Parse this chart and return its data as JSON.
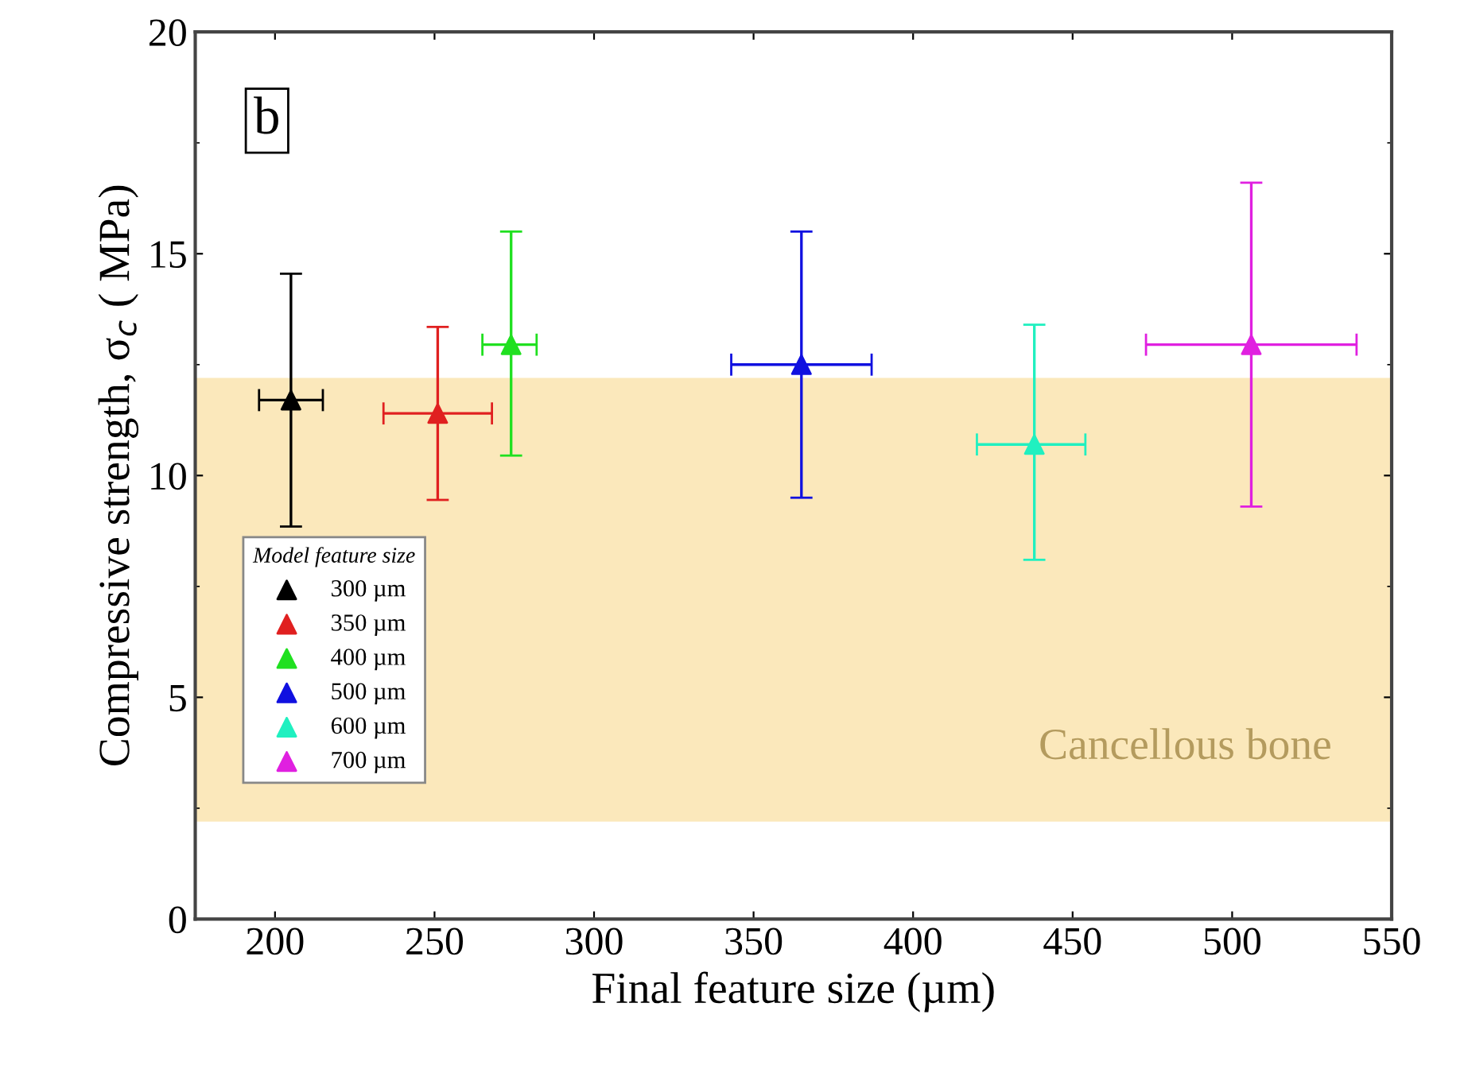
{
  "chart_data": {
    "type": "scatter",
    "xlabel": "Final feature size (µm)",
    "ylabel": "Compressive strength, σ$_{c}$ ( MPa)",
    "xlim": [
      175,
      550
    ],
    "xticks": [
      200,
      250,
      300,
      350,
      400,
      450,
      500,
      550
    ],
    "ylim": [
      0,
      20
    ],
    "yticks": [
      0,
      5,
      10,
      15,
      20
    ],
    "marker": "triangle",
    "legend": "bottom left",
    "legend_title": "Model feature size",
    "grid": false,
    "bands": [
      {
        "axis": "y",
        "from": 2.2,
        "to": 12.2,
        "label": "Cancellous bone",
        "color": "#fbe8bb"
      }
    ],
    "annotations": [
      "b"
    ],
    "series": [
      {
        "name": "300 µm",
        "color": "#000000",
        "x": [
          205
        ],
        "values": [
          11.7
        ],
        "errors": [
          [
            8.85,
            14.55
          ]
        ],
        "xerrors": [
          [
            195,
            215
          ]
        ]
      },
      {
        "name": "350 µm",
        "color": "#e02020",
        "x": [
          251
        ],
        "values": [
          11.4
        ],
        "errors": [
          [
            9.45,
            13.35
          ]
        ],
        "xerrors": [
          [
            234,
            268
          ]
        ]
      },
      {
        "name": "400 µm",
        "color": "#20e020",
        "x": [
          274
        ],
        "values": [
          12.95
        ],
        "errors": [
          [
            10.45,
            15.5
          ]
        ],
        "xerrors": [
          [
            265,
            282
          ]
        ]
      },
      {
        "name": "500 µm",
        "color": "#1010e0",
        "x": [
          365
        ],
        "values": [
          12.5
        ],
        "errors": [
          [
            9.5,
            15.5
          ]
        ],
        "xerrors": [
          [
            343,
            387
          ]
        ]
      },
      {
        "name": "600 µm",
        "color": "#20f0c0",
        "x": [
          438
        ],
        "values": [
          10.7
        ],
        "errors": [
          [
            8.1,
            13.4
          ]
        ],
        "xerrors": [
          [
            420,
            454
          ]
        ]
      },
      {
        "name": "700 µm",
        "color": "#e020e0",
        "x": [
          506
        ],
        "values": [
          12.95
        ],
        "errors": [
          [
            9.3,
            16.6
          ]
        ],
        "xerrors": [
          [
            473,
            539
          ]
        ]
      }
    ]
  }
}
